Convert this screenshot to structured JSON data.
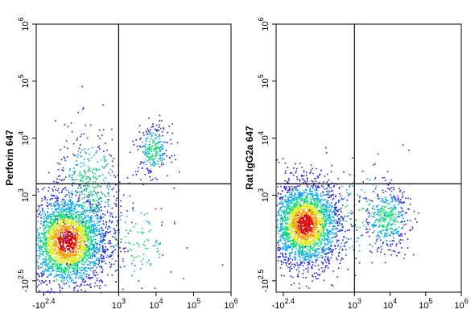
{
  "chart_data": [
    {
      "type": "scatter",
      "subtype": "flow-cytometry-density",
      "ylabel": "Perforin 647",
      "xlabel": "",
      "x_ticks": [
        {
          "value": -2.4,
          "base": "-10",
          "exp": "2.4"
        },
        {
          "value": 3,
          "base": "10",
          "exp": "3"
        },
        {
          "value": 4,
          "base": "10",
          "exp": "4"
        },
        {
          "value": 5,
          "base": "10",
          "exp": "5"
        },
        {
          "value": 6,
          "base": "10",
          "exp": "6"
        }
      ],
      "y_ticks": [
        {
          "value": -2.5,
          "base": "-10",
          "exp": "2.5"
        },
        {
          "value": 3,
          "base": "10",
          "exp": "3"
        },
        {
          "value": 4,
          "base": "10",
          "exp": "4"
        },
        {
          "value": 5,
          "base": "10",
          "exp": "5"
        },
        {
          "value": 6,
          "base": "10",
          "exp": "6"
        }
      ],
      "gate": {
        "x": 3.0,
        "y": 3.2
      },
      "populations": [
        {
          "cx": 1.6,
          "cy": 2.2,
          "sx": 0.55,
          "sy": 0.42,
          "n": 2600
        },
        {
          "cx": 2.2,
          "cy": 3.1,
          "sx": 0.45,
          "sy": 0.55,
          "n": 420
        },
        {
          "cx": 3.9,
          "cy": 3.8,
          "sx": 0.22,
          "sy": 0.22,
          "n": 260
        },
        {
          "cx": 3.4,
          "cy": 2.2,
          "sx": 0.55,
          "sy": 0.45,
          "n": 140
        }
      ]
    },
    {
      "type": "scatter",
      "subtype": "flow-cytometry-density",
      "ylabel": "Rat IgG2a 647",
      "xlabel": "",
      "x_ticks": [
        {
          "value": -2.4,
          "base": "-10",
          "exp": "2.4"
        },
        {
          "value": 3,
          "base": "10",
          "exp": "3"
        },
        {
          "value": 4,
          "base": "10",
          "exp": "4"
        },
        {
          "value": 5,
          "base": "10",
          "exp": "5"
        },
        {
          "value": 6,
          "base": "10",
          "exp": "6"
        }
      ],
      "y_ticks": [
        {
          "value": -2.5,
          "base": "-10",
          "exp": "2.5"
        },
        {
          "value": 3,
          "base": "10",
          "exp": "3"
        },
        {
          "value": 4,
          "base": "10",
          "exp": "4"
        },
        {
          "value": 5,
          "base": "10",
          "exp": "5"
        },
        {
          "value": 6,
          "base": "10",
          "exp": "6"
        }
      ],
      "gate": {
        "x": 3.0,
        "y": 3.2
      },
      "populations": [
        {
          "cx": 1.6,
          "cy": 2.5,
          "sx": 0.5,
          "sy": 0.38,
          "n": 2400
        },
        {
          "cx": 3.9,
          "cy": 2.6,
          "sx": 0.32,
          "sy": 0.28,
          "n": 380
        },
        {
          "cx": 3.0,
          "cy": 2.7,
          "sx": 0.7,
          "sy": 0.5,
          "n": 160
        }
      ]
    }
  ],
  "colors": {
    "scale": [
      "#1f1fff",
      "#00a8ff",
      "#00e070",
      "#d8f000",
      "#ff9a00",
      "#e00000"
    ],
    "axis": "#000000",
    "gate": "#000000"
  }
}
